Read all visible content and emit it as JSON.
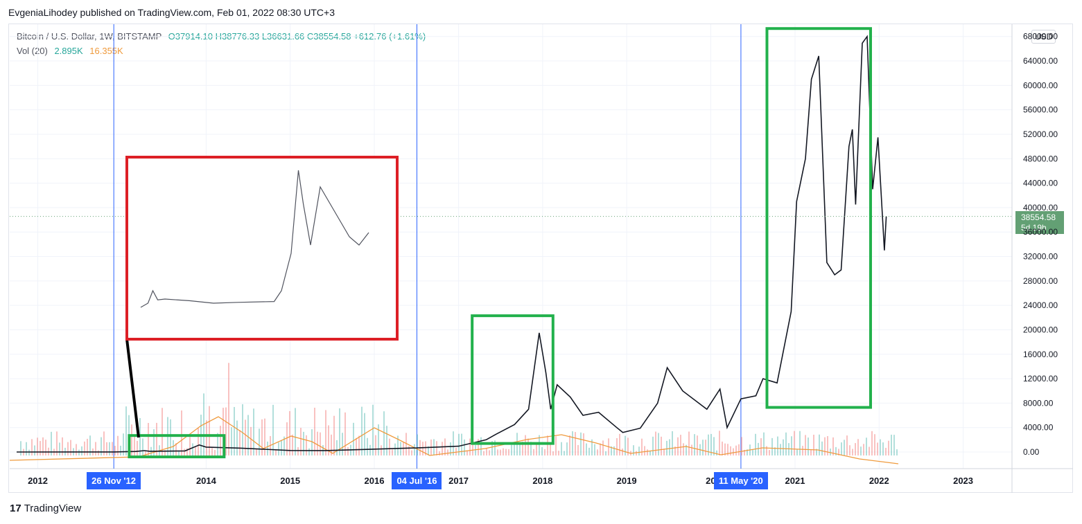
{
  "header": {
    "publisher_line": "EvgeniaLihodey published on TradingView.com, Feb 01, 2022 08:30 UTC+3"
  },
  "legend": {
    "symbol": "Bitcoin / U.S. Dollar, 1W, BITSTAMP",
    "ohlc": "O37914.10  H38776.33  L36631.66  C38554.58  +612.76 (+1.61%)",
    "vol_label": "Vol (20)",
    "vol_value": "2.895K",
    "vol_ma": "16.355K"
  },
  "currency_button": "USD",
  "last_price": {
    "value": "38554.58",
    "countdown": "5d 19h"
  },
  "date_markers": [
    {
      "label": "26 Nov '12",
      "date": "2012-11-26"
    },
    {
      "label": "04 Jul '16",
      "date": "2016-07-04"
    },
    {
      "label": "11 May '20",
      "date": "2020-05-11"
    }
  ],
  "footer": {
    "brand": "TradingView",
    "logo_glyph": "17"
  },
  "colors": {
    "up": "#26a69a",
    "down": "#ef5350",
    "volume_ma": "#ef9a3c",
    "halving_line": "#2962ff",
    "highlight_green": "#22b14c",
    "highlight_red": "#dd1f26",
    "price_tag": "#63a074"
  },
  "chart_data": {
    "type": "line",
    "title": "Bitcoin / U.S. Dollar, 1W, BITSTAMP",
    "y_axis": {
      "ticks": [
        "0.00",
        "4000.00",
        "8000.00",
        "12000.00",
        "16000.00",
        "20000.00",
        "24000.00",
        "28000.00",
        "32000.00",
        "36000.00",
        "40000.00",
        "44000.00",
        "48000.00",
        "52000.00",
        "56000.00",
        "60000.00",
        "64000.00",
        "68000.00"
      ],
      "ylim": [
        -2000,
        68000
      ],
      "position": "right"
    },
    "x_axis": {
      "ticks": [
        "2012",
        "2014",
        "2015",
        "2016",
        "2017",
        "2018",
        "2019",
        "20",
        "2021",
        "2022",
        "2023"
      ],
      "range": [
        "2011-09-01",
        "2023-08-01"
      ]
    },
    "series": [
      {
        "type": "price",
        "points": [
          [
            "2011-10-01",
            5
          ],
          [
            "2012-06-01",
            7
          ],
          [
            "2012-11-26",
            12
          ],
          [
            "2013-03-01",
            90
          ],
          [
            "2013-04-08",
            230
          ],
          [
            "2013-05-01",
            120
          ],
          [
            "2013-10-01",
            180
          ],
          [
            "2013-12-02",
            1150
          ],
          [
            "2014-01-01",
            800
          ],
          [
            "2014-06-01",
            640
          ],
          [
            "2015-01-01",
            250
          ],
          [
            "2015-06-01",
            240
          ],
          [
            "2015-12-01",
            430
          ],
          [
            "2016-06-01",
            650
          ],
          [
            "2016-07-04",
            670
          ],
          [
            "2017-01-01",
            950
          ],
          [
            "2017-05-01",
            2000
          ],
          [
            "2017-06-12",
            2900
          ],
          [
            "2017-09-01",
            4500
          ],
          [
            "2017-11-01",
            7000
          ],
          [
            "2017-12-17",
            19500
          ],
          [
            "2018-01-15",
            13000
          ],
          [
            "2018-02-05",
            7000
          ],
          [
            "2018-03-05",
            11000
          ],
          [
            "2018-05-01",
            9000
          ],
          [
            "2018-06-25",
            6000
          ],
          [
            "2018-09-01",
            6500
          ],
          [
            "2018-11-19",
            4000
          ],
          [
            "2018-12-15",
            3200
          ],
          [
            "2019-03-01",
            3900
          ],
          [
            "2019-05-15",
            8000
          ],
          [
            "2019-06-26",
            13800
          ],
          [
            "2019-09-01",
            10000
          ],
          [
            "2019-12-15",
            7000
          ],
          [
            "2020-02-10",
            10300
          ],
          [
            "2020-03-12",
            4000
          ],
          [
            "2020-05-11",
            8700
          ],
          [
            "2020-07-15",
            9200
          ],
          [
            "2020-08-15",
            12000
          ],
          [
            "2020-10-15",
            11300
          ],
          [
            "2020-12-15",
            23000
          ],
          [
            "2021-01-08",
            41000
          ],
          [
            "2021-02-15",
            48000
          ],
          [
            "2021-03-13",
            61000
          ],
          [
            "2021-04-14",
            64800
          ],
          [
            "2021-05-19",
            31000
          ],
          [
            "2021-06-22",
            29000
          ],
          [
            "2021-07-20",
            29800
          ],
          [
            "2021-08-23",
            50000
          ],
          [
            "2021-09-07",
            52800
          ],
          [
            "2021-09-21",
            40500
          ],
          [
            "2021-10-20",
            66900
          ],
          [
            "2021-11-10",
            68000
          ],
          [
            "2021-12-04",
            43000
          ],
          [
            "2021-12-27",
            51500
          ],
          [
            "2022-01-24",
            33000
          ],
          [
            "2022-02-01",
            38554.58
          ]
        ]
      },
      {
        "name": "Vol (20)",
        "type": "volume_ma",
        "units": "K BTC",
        "current": 16.355,
        "last_bar": 2.895
      }
    ],
    "highlights": [
      {
        "color": "green",
        "from": "2013-02-01",
        "to": "2014-03-20",
        "low": -800,
        "high": 2700
      },
      {
        "color": "green",
        "from": "2017-03-01",
        "to": "2018-02-15",
        "low": 1400,
        "high": 22300
      },
      {
        "color": "green",
        "from": "2020-09-01",
        "to": "2021-11-25",
        "low": 7300,
        "high": 69300
      },
      {
        "color": "red",
        "type": "inset",
        "content": "zoom of 2013–2016 price",
        "connector": "black"
      }
    ],
    "horizontal_line": {
      "value": 38554.58,
      "style": "dotted"
    },
    "grid": true,
    "legend_position": "top-left"
  }
}
